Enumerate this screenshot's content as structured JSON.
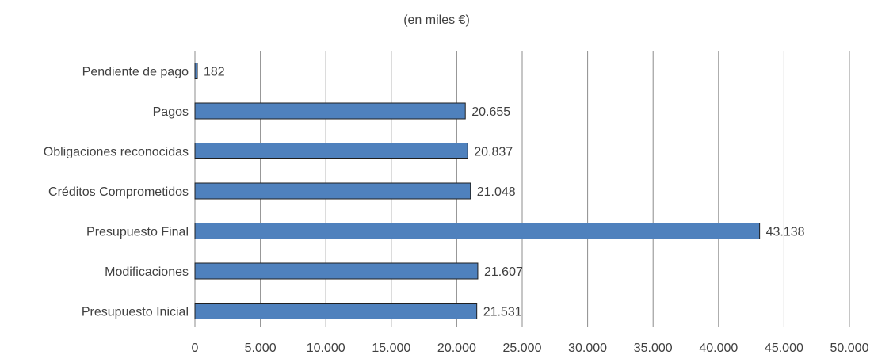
{
  "chart_data": {
    "type": "bar",
    "orientation": "horizontal",
    "title": "",
    "subtitle": "(en miles €)",
    "xlabel": "",
    "ylabel": "",
    "categories": [
      "Pendiente de pago",
      "Pagos",
      "Obligaciones reconocidas",
      "Créditos Comprometidos",
      "Presupuesto Final",
      "Modificaciones",
      "Presupuesto Inicial"
    ],
    "values": [
      182,
      20655,
      20837,
      21048,
      43138,
      21607,
      21531
    ],
    "data_labels": [
      "182",
      "20.655",
      "20.837",
      "21.048",
      "43.138",
      "21.607",
      "21.531"
    ],
    "xlim": [
      0,
      50000
    ],
    "x_ticks": [
      0,
      5000,
      10000,
      15000,
      20000,
      25000,
      30000,
      35000,
      40000,
      45000,
      50000
    ],
    "x_tick_labels": [
      "0",
      "5.000",
      "10.000",
      "15.000",
      "20.000",
      "25.000",
      "30.000",
      "35.000",
      "40.000",
      "45.000",
      "50.000"
    ],
    "grid": "vertical",
    "legend": "none",
    "colors": {
      "bar_fill": "#4f81bd",
      "bar_stroke": "#1f1f1f",
      "grid": "#8c8c8c",
      "text": "#404040"
    }
  }
}
